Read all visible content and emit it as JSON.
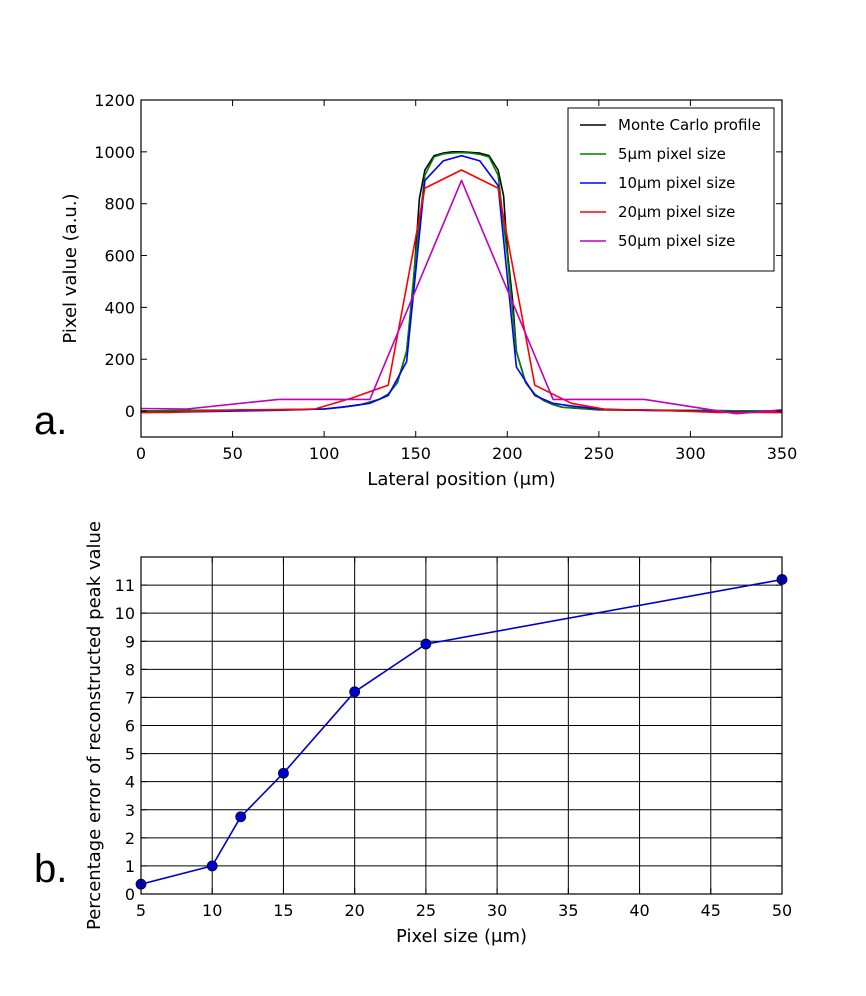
{
  "panels": {
    "a": "a.",
    "b": "b."
  },
  "chart_data": [
    {
      "type": "line",
      "xlabel": "Lateral position (μm)",
      "ylabel": "Pixel value (a.u.)",
      "xlim": [
        0,
        350
      ],
      "ylim": [
        -100,
        1200
      ],
      "xticks": [
        0,
        50,
        100,
        150,
        200,
        250,
        300,
        350
      ],
      "yticks": [
        0,
        200,
        400,
        600,
        800,
        1000,
        1200
      ],
      "grid": false,
      "legend_position": "top-right",
      "series": [
        {
          "name": "Monte Carlo profile",
          "color": "#000000",
          "x": [
            0,
            25,
            50,
            75,
            100,
            110,
            120,
            130,
            135,
            140,
            145,
            148,
            150,
            152,
            155,
            160,
            165,
            170,
            175,
            180,
            185,
            190,
            195,
            198,
            200,
            203,
            205,
            210,
            215,
            220,
            225,
            230,
            250,
            275,
            300,
            325,
            350
          ],
          "y": [
            0,
            2,
            3,
            5,
            8,
            15,
            25,
            45,
            65,
            110,
            230,
            420,
            620,
            820,
            930,
            985,
            995,
            1000,
            1000,
            998,
            995,
            985,
            930,
            830,
            620,
            420,
            230,
            110,
            65,
            40,
            25,
            15,
            5,
            3,
            2,
            1,
            0
          ]
        },
        {
          "name": "5μm pixel size",
          "color": "#008000",
          "x": [
            0,
            25,
            50,
            75,
            100,
            110,
            120,
            130,
            135,
            140,
            145,
            150,
            155,
            160,
            165,
            170,
            175,
            180,
            185,
            190,
            195,
            200,
            205,
            210,
            215,
            220,
            225,
            230,
            250,
            275,
            300,
            325,
            350
          ],
          "y": [
            0,
            3,
            4,
            6,
            8,
            15,
            25,
            45,
            65,
            110,
            230,
            600,
            910,
            980,
            992,
            996,
            997,
            995,
            990,
            980,
            910,
            600,
            230,
            110,
            65,
            40,
            25,
            15,
            6,
            4,
            3,
            1,
            0
          ]
        },
        {
          "name": "10μm pixel size",
          "color": "#0000ff",
          "x": [
            0,
            25,
            50,
            75,
            100,
            115,
            125,
            135,
            145,
            155,
            165,
            175,
            185,
            195,
            205,
            215,
            225,
            235,
            250,
            275,
            300,
            325,
            350
          ],
          "y": [
            -5,
            -3,
            0,
            3,
            8,
            20,
            30,
            60,
            190,
            890,
            965,
            985,
            965,
            870,
            170,
            60,
            30,
            20,
            8,
            3,
            0,
            -3,
            -5
          ]
        },
        {
          "name": "20μm pixel size",
          "color": "#ff0000",
          "x": [
            0,
            15,
            35,
            55,
            75,
            95,
            115,
            135,
            155,
            175,
            195,
            215,
            235,
            255,
            275,
            295,
            315,
            335,
            350
          ],
          "y": [
            -5,
            -5,
            0,
            5,
            5,
            8,
            50,
            100,
            860,
            930,
            860,
            100,
            30,
            5,
            5,
            0,
            -5,
            -5,
            -5
          ]
        },
        {
          "name": "50μm pixel size",
          "color": "#bf00bf",
          "x": [
            0,
            25,
            75,
            125,
            175,
            225,
            275,
            325,
            350
          ],
          "y": [
            10,
            8,
            45,
            45,
            890,
            45,
            45,
            -10,
            5
          ]
        }
      ]
    },
    {
      "type": "line",
      "xlabel": "Pixel size (μm)",
      "ylabel": "Percentage error of reconstructed peak value",
      "xlim": [
        5,
        50
      ],
      "ylim": [
        0,
        12
      ],
      "xticks": [
        5,
        10,
        15,
        20,
        25,
        30,
        35,
        40,
        45,
        50
      ],
      "yticks": [
        0,
        1,
        2,
        3,
        4,
        5,
        6,
        7,
        8,
        9,
        10,
        11
      ],
      "grid": true,
      "series": [
        {
          "color": "#0000cc",
          "x": [
            5,
            10,
            12,
            15,
            20,
            25,
            50
          ],
          "y": [
            0.35,
            1.0,
            2.75,
            4.3,
            7.2,
            8.9,
            11.2
          ]
        }
      ]
    }
  ]
}
